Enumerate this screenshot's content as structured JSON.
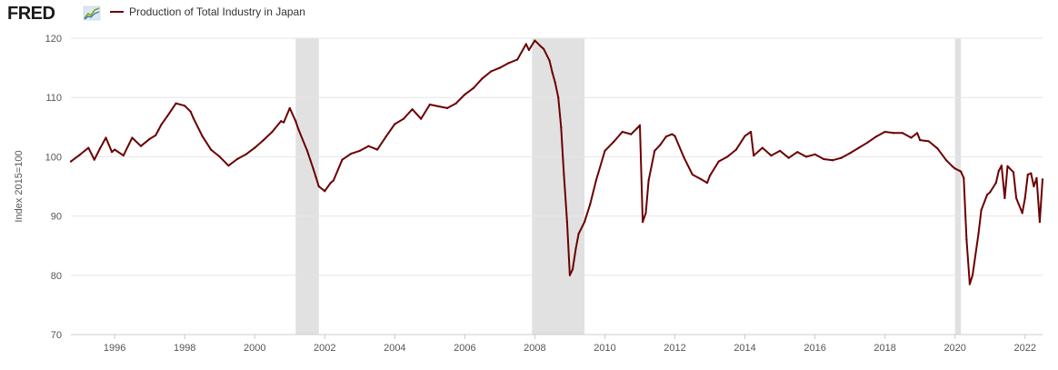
{
  "brand": {
    "name": "FRED",
    "icon": "fred-chart-icon"
  },
  "chart_data": {
    "type": "line",
    "title": "",
    "series": [
      {
        "name": "Production of Total Industry in Japan",
        "color": "#6b0000",
        "x": [
          1994.75,
          1995.0,
          1995.25,
          1995.42,
          1995.58,
          1995.75,
          1995.92,
          1996.0,
          1996.25,
          1996.5,
          1996.75,
          1997.0,
          1997.17,
          1997.25,
          1997.33,
          1997.5,
          1997.75,
          1998.0,
          1998.17,
          1998.25,
          1998.5,
          1998.75,
          1999.0,
          1999.25,
          1999.5,
          1999.75,
          2000.0,
          2000.25,
          2000.5,
          2000.75,
          2000.83,
          2001.0,
          2001.17,
          2001.25,
          2001.5,
          2001.67,
          2001.75,
          2001.83,
          2002.0,
          2002.17,
          2002.25,
          2002.5,
          2002.75,
          2003.0,
          2003.25,
          2003.5,
          2003.75,
          2004.0,
          2004.25,
          2004.5,
          2004.75,
          2005.0,
          2005.25,
          2005.5,
          2005.75,
          2006.0,
          2006.25,
          2006.5,
          2006.75,
          2007.0,
          2007.25,
          2007.5,
          2007.75,
          2007.83,
          2008.0,
          2008.17,
          2008.25,
          2008.42,
          2008.5,
          2008.58,
          2008.67,
          2008.75,
          2008.83,
          2008.92,
          2009.0,
          2009.08,
          2009.17,
          2009.25,
          2009.42,
          2009.58,
          2009.75,
          2010.0,
          2010.25,
          2010.5,
          2010.75,
          2010.92,
          2011.0,
          2011.08,
          2011.17,
          2011.25,
          2011.42,
          2011.58,
          2011.75,
          2011.92,
          2012.0,
          2012.25,
          2012.5,
          2012.75,
          2012.92,
          2013.0,
          2013.25,
          2013.5,
          2013.75,
          2014.0,
          2014.17,
          2014.25,
          2014.5,
          2014.75,
          2015.0,
          2015.25,
          2015.5,
          2015.75,
          2016.0,
          2016.25,
          2016.5,
          2016.75,
          2017.0,
          2017.25,
          2017.5,
          2017.75,
          2018.0,
          2018.25,
          2018.5,
          2018.75,
          2018.92,
          2019.0,
          2019.25,
          2019.5,
          2019.75,
          2019.92,
          2020.0,
          2020.17,
          2020.25,
          2020.33,
          2020.42,
          2020.5,
          2020.67,
          2020.75,
          2020.92,
          2021.0,
          2021.17,
          2021.25,
          2021.33,
          2021.42,
          2021.5,
          2021.67,
          2021.75,
          2021.92,
          2022.0,
          2022.08,
          2022.17,
          2022.25,
          2022.33,
          2022.42,
          2022.5
        ],
        "values": [
          99.2,
          100.3,
          101.5,
          99.5,
          101.4,
          103.2,
          100.8,
          101.2,
          100.2,
          103.2,
          101.8,
          103.0,
          103.6,
          104.5,
          105.4,
          106.8,
          109.0,
          108.6,
          107.6,
          106.5,
          103.5,
          101.2,
          100.0,
          98.5,
          99.6,
          100.4,
          101.5,
          102.8,
          104.2,
          106.0,
          105.8,
          108.2,
          106.0,
          104.6,
          101.0,
          98.0,
          96.5,
          95.0,
          94.2,
          95.6,
          96.0,
          99.5,
          100.5,
          101.0,
          101.8,
          101.2,
          103.4,
          105.5,
          106.4,
          108.0,
          106.4,
          108.8,
          108.5,
          108.2,
          109.0,
          110.5,
          111.6,
          113.2,
          114.4,
          115.0,
          115.8,
          116.4,
          119.0,
          118.0,
          119.6,
          118.6,
          118.2,
          116.2,
          114.2,
          112.5,
          110.0,
          105.0,
          97.0,
          89.0,
          80.0,
          81.0,
          84.5,
          87.0,
          89.0,
          92.0,
          96.0,
          101.0,
          102.5,
          104.2,
          103.8,
          104.8,
          105.3,
          89.0,
          90.5,
          96.0,
          101.0,
          102.0,
          103.4,
          103.8,
          103.5,
          100.0,
          97.0,
          96.2,
          95.6,
          96.8,
          99.2,
          100.0,
          101.2,
          103.5,
          104.2,
          100.2,
          101.5,
          100.2,
          101.0,
          99.8,
          100.8,
          100.0,
          100.4,
          99.6,
          99.4,
          99.8,
          100.6,
          101.5,
          102.4,
          103.4,
          104.2,
          104.0,
          104.0,
          103.2,
          104.0,
          102.8,
          102.6,
          101.4,
          99.4,
          98.4,
          98.0,
          97.5,
          96.4,
          86.0,
          78.5,
          80.0,
          87.0,
          91.0,
          93.6,
          94.0,
          95.6,
          97.6,
          98.5,
          93.0,
          98.4,
          97.4,
          93.0,
          90.5,
          93.0,
          97.0,
          97.2,
          95.0,
          96.4,
          89.0,
          96.2
        ]
      }
    ],
    "recessions": [
      [
        2001.17,
        2001.83
      ],
      [
        2007.92,
        2009.42
      ],
      [
        2020.0,
        2020.17
      ]
    ],
    "xlim": [
      1994.75,
      2022.5
    ],
    "ylim": [
      70,
      120
    ],
    "xticks": [
      1996,
      1998,
      2000,
      2002,
      2004,
      2006,
      2008,
      2010,
      2012,
      2014,
      2016,
      2018,
      2020,
      2022
    ],
    "yticks": [
      70,
      80,
      90,
      100,
      110,
      120
    ],
    "xlabel": "",
    "ylabel": "Index 2015=100",
    "grid": "horizontal",
    "legend": "top-left"
  }
}
